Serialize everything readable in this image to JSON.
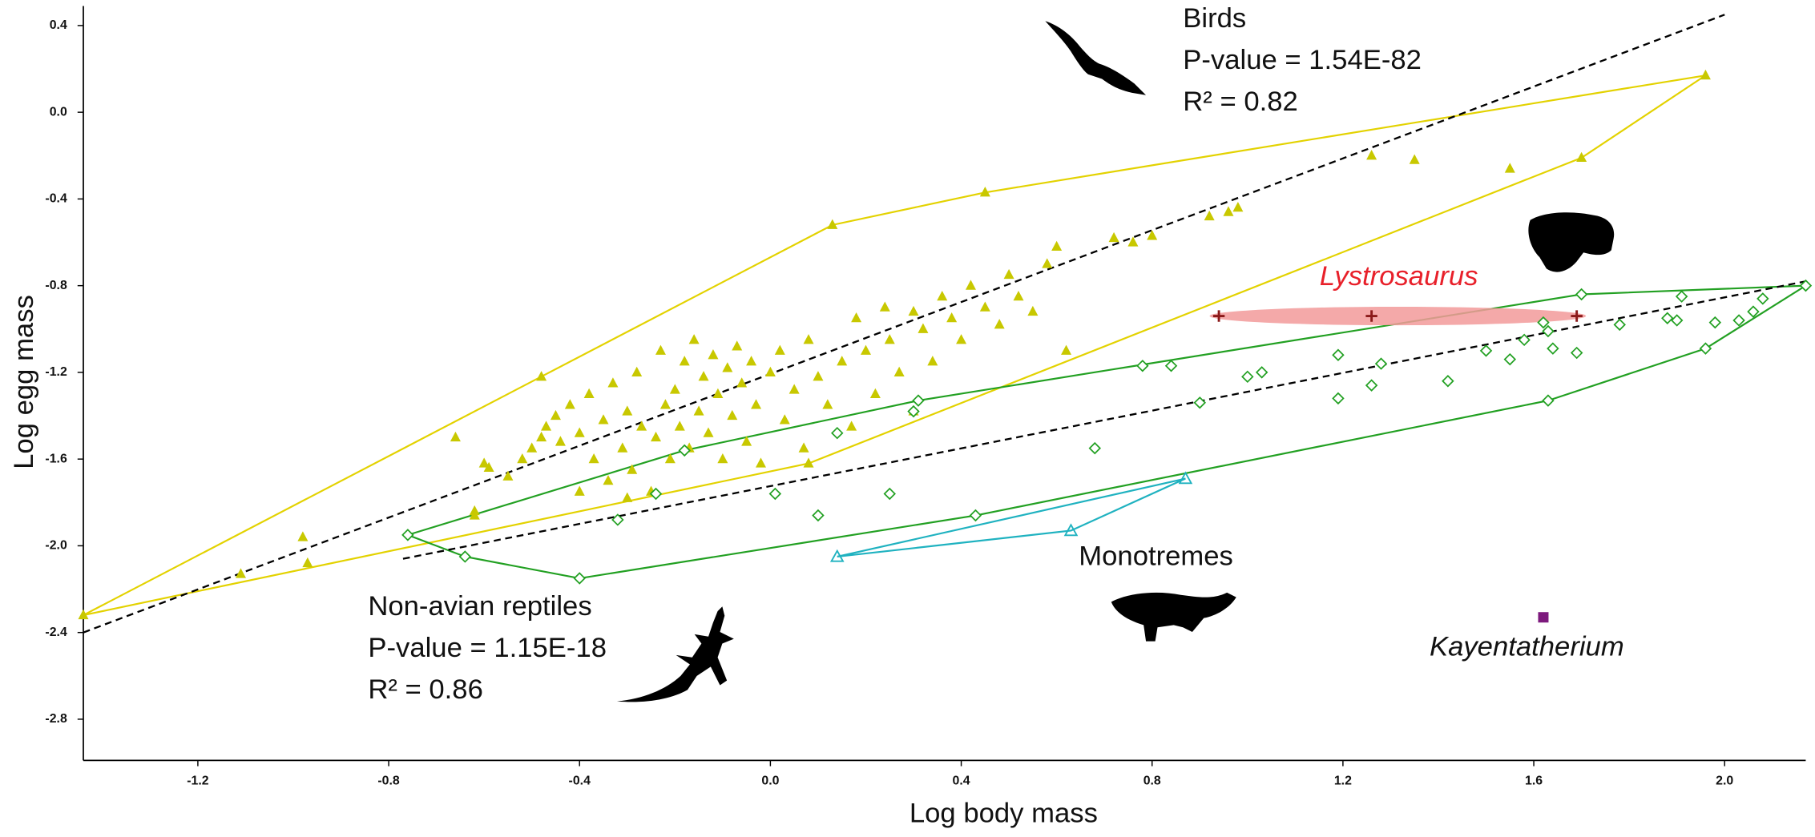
{
  "chart_data": {
    "type": "scatter",
    "xlabel": "Log body mass",
    "ylabel": "Log egg mass",
    "xlim": [
      -1.44,
      2.17
    ],
    "ylim": [
      -2.99,
      0.49
    ],
    "xticks": [
      -1.2,
      -0.8,
      -0.4,
      {
        "value": 0,
        "label": "0.0"
      },
      0.4,
      0.8,
      1.2,
      1.6,
      {
        "value": 2,
        "label": "2.0"
      }
    ],
    "yticks": [
      0.4,
      {
        "value": 0,
        "label": "0.0"
      },
      -0.4,
      -0.8,
      -1.2,
      -1.6,
      {
        "value": -2,
        "label": "-2.0"
      },
      -2.4,
      -2.8
    ],
    "series": [
      {
        "name": "Birds",
        "color": "#c8c800",
        "marker": "triangle-filled",
        "hull": true,
        "hull_color": "#e3d200",
        "stats": [
          "P-value = 1.54E-82",
          "R² = 0.82"
        ],
        "x": [
          -1.44,
          -1.11,
          -0.98,
          -0.97,
          -0.66,
          -0.59,
          -0.62,
          -0.62,
          -0.48,
          0.13,
          0.45,
          1.26,
          1.35,
          1.55,
          1.7,
          1.96,
          0.92,
          0.96,
          0.98,
          0.72,
          0.76,
          0.8,
          0.6,
          0.62,
          -0.52,
          -0.5,
          -0.48,
          -0.47,
          -0.45,
          -0.44,
          -0.42,
          -0.4,
          -0.38,
          -0.37,
          -0.35,
          -0.34,
          -0.33,
          -0.31,
          -0.3,
          -0.29,
          -0.28,
          -0.27,
          -0.25,
          -0.24,
          -0.23,
          -0.22,
          -0.21,
          -0.2,
          -0.19,
          -0.18,
          -0.17,
          -0.16,
          -0.15,
          -0.14,
          -0.13,
          -0.12,
          -0.11,
          -0.1,
          -0.09,
          -0.08,
          -0.07,
          -0.06,
          -0.05,
          -0.04,
          -0.03,
          -0.02,
          0.0,
          0.02,
          0.03,
          0.05,
          0.07,
          0.08,
          0.1,
          0.12,
          0.15,
          0.17,
          0.18,
          0.2,
          0.22,
          0.24,
          0.25,
          0.27,
          0.3,
          0.32,
          0.34,
          0.36,
          0.38,
          0.4,
          0.42,
          0.45,
          0.48,
          0.5,
          0.52,
          0.55,
          0.58,
          0.3,
          0.08,
          -0.4,
          -0.3,
          -0.55,
          -0.6
        ],
        "values": [
          -2.32,
          -2.13,
          -1.96,
          -2.08,
          -1.5,
          -1.64,
          -1.86,
          -1.84,
          -1.22,
          -0.52,
          -0.37,
          -0.2,
          -0.22,
          -0.26,
          -0.21,
          0.17,
          -0.48,
          -0.46,
          -0.44,
          -0.58,
          -0.6,
          -0.57,
          -0.62,
          -1.1,
          -1.6,
          -1.55,
          -1.5,
          -1.45,
          -1.4,
          -1.52,
          -1.35,
          -1.48,
          -1.3,
          -1.6,
          -1.42,
          -1.7,
          -1.25,
          -1.55,
          -1.38,
          -1.65,
          -1.2,
          -1.45,
          -1.75,
          -1.5,
          -1.1,
          -1.35,
          -1.6,
          -1.28,
          -1.45,
          -1.15,
          -1.55,
          -1.05,
          -1.38,
          -1.22,
          -1.48,
          -1.12,
          -1.3,
          -1.6,
          -1.18,
          -1.4,
          -1.08,
          -1.25,
          -1.52,
          -1.15,
          -1.35,
          -1.62,
          -1.2,
          -1.1,
          -1.42,
          -1.28,
          -1.55,
          -1.05,
          -1.22,
          -1.35,
          -1.15,
          -1.45,
          -0.95,
          -1.1,
          -1.3,
          -0.9,
          -1.05,
          -1.2,
          -0.92,
          -1.0,
          -1.15,
          -0.85,
          -0.95,
          -1.05,
          -0.8,
          -0.9,
          -0.98,
          -0.75,
          -0.85,
          -0.92,
          -0.7,
          -1.38,
          -1.62,
          -1.75,
          -1.78,
          -1.68,
          -1.62
        ]
      },
      {
        "name": "Non-avian reptiles",
        "color": "#22a022",
        "marker": "diamond-open",
        "hull": true,
        "hull_color": "#22a022",
        "stats": [
          "P-value = 1.15E-18",
          "R² = 0.86"
        ],
        "x": [
          -0.76,
          0.31,
          0.78,
          1.7,
          2.17,
          1.96,
          1.63,
          -0.4,
          -0.64,
          -0.18,
          0.14,
          0.3,
          0.43,
          0.1,
          0.01,
          -0.24,
          -0.32,
          0.25,
          0.68,
          0.9,
          0.84,
          1.0,
          1.03,
          1.19,
          1.19,
          1.26,
          1.28,
          1.42,
          1.5,
          1.55,
          1.58,
          1.62,
          1.63,
          1.64,
          1.69,
          1.78,
          1.88,
          1.9,
          1.91,
          1.98,
          2.03,
          2.06,
          2.08
        ],
        "values": [
          -1.95,
          -1.33,
          -1.17,
          -0.84,
          -0.8,
          -1.09,
          -1.33,
          -2.15,
          -2.05,
          -1.56,
          -1.48,
          -1.38,
          -1.86,
          -1.86,
          -1.76,
          -1.76,
          -1.88,
          -1.76,
          -1.55,
          -1.34,
          -1.17,
          -1.22,
          -1.2,
          -1.12,
          -1.32,
          -1.26,
          -1.16,
          -1.24,
          -1.1,
          -1.14,
          -1.05,
          -0.97,
          -1.01,
          -1.09,
          -1.11,
          -0.98,
          -0.95,
          -0.96,
          -0.85,
          -0.97,
          -0.96,
          -0.92,
          -0.86
        ]
      },
      {
        "name": "Monotremes",
        "color": "#1fb2c0",
        "marker": "triangle-open",
        "hull": true,
        "hull_color": "#1fb2c0",
        "x": [
          0.14,
          0.63,
          0.87
        ],
        "values": [
          -2.05,
          -1.93,
          -1.69
        ]
      },
      {
        "name": "Lystrosaurus",
        "color": "#8b1a1a",
        "marker": "plus",
        "range_ellipse": true,
        "ellipse_color": "#f29a9a",
        "label_color": "#e8202a",
        "x": [
          0.94,
          1.26,
          1.69
        ],
        "values": [
          -0.94,
          -0.94,
          -0.94
        ]
      },
      {
        "name": "Kayentatherium",
        "color": "#7d1a7d",
        "marker": "square",
        "x": [
          1.62
        ],
        "values": [
          -2.33
        ]
      }
    ],
    "fit_lines": [
      {
        "color": "#000000",
        "dashed": true,
        "x": [
          -1.44,
          2.0
        ],
        "values": [
          -2.4,
          0.45
        ]
      },
      {
        "color": "#000000",
        "dashed": true,
        "x": [
          -0.77,
          2.17
        ],
        "values": [
          -2.06,
          -0.78
        ]
      }
    ]
  }
}
